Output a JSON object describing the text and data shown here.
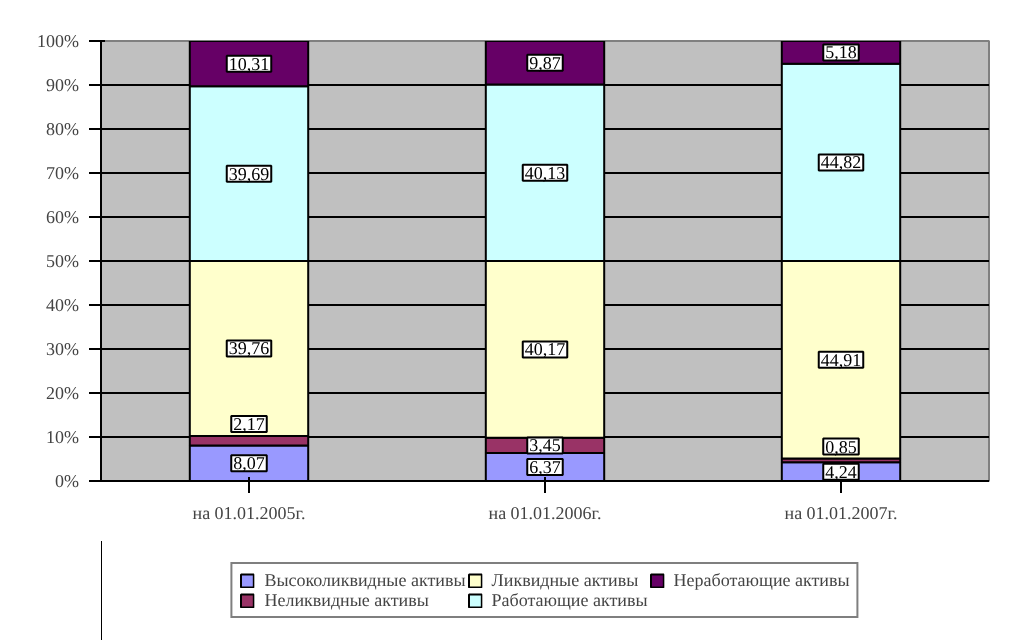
{
  "chart_data": {
    "type": "bar",
    "stacked": true,
    "categories": [
      "на 01.01.2005г.",
      "на 01.01.2006г.",
      "на 01.01.2007г."
    ],
    "ylim": [
      0,
      100
    ],
    "yticks": [
      {
        "value": 0,
        "label": "0%"
      },
      {
        "value": 10,
        "label": "10%"
      },
      {
        "value": 20,
        "label": "20%"
      },
      {
        "value": 30,
        "label": "30%"
      },
      {
        "value": 40,
        "label": "40%"
      },
      {
        "value": 50,
        "label": "50%"
      },
      {
        "value": 60,
        "label": "60%"
      },
      {
        "value": 70,
        "label": "70%"
      },
      {
        "value": 80,
        "label": "80%"
      },
      {
        "value": 90,
        "label": "90%"
      },
      {
        "value": 100,
        "label": "100%"
      }
    ],
    "grid": "y",
    "legend": "bottom",
    "series": [
      {
        "name": "Высоколиквидные активы",
        "color": "#9999ff",
        "values": [
          8.07,
          6.37,
          4.24
        ],
        "value_labels": [
          "8,07",
          "6,37",
          "4,24"
        ]
      },
      {
        "name": "Неликвидные активы",
        "color": "#993366",
        "values": [
          2.17,
          3.45,
          0.85
        ],
        "value_labels": [
          "2,17",
          "3,45",
          "0,85"
        ]
      },
      {
        "name": "Ликвидные активы",
        "color": "#ffffcc",
        "values": [
          39.76,
          40.17,
          44.91
        ],
        "value_labels": [
          "39,76",
          "40,17",
          "44,91"
        ]
      },
      {
        "name": "Работающие активы",
        "color": "#ccffff",
        "values": [
          39.69,
          40.13,
          44.82
        ],
        "value_labels": [
          "39,69",
          "40,13",
          "44,82"
        ]
      },
      {
        "name": "Неработающие активы",
        "color": "#660066",
        "values": [
          10.31,
          9.87,
          5.18
        ],
        "value_labels": [
          "10,31",
          "9,87",
          "5,18"
        ]
      }
    ]
  }
}
